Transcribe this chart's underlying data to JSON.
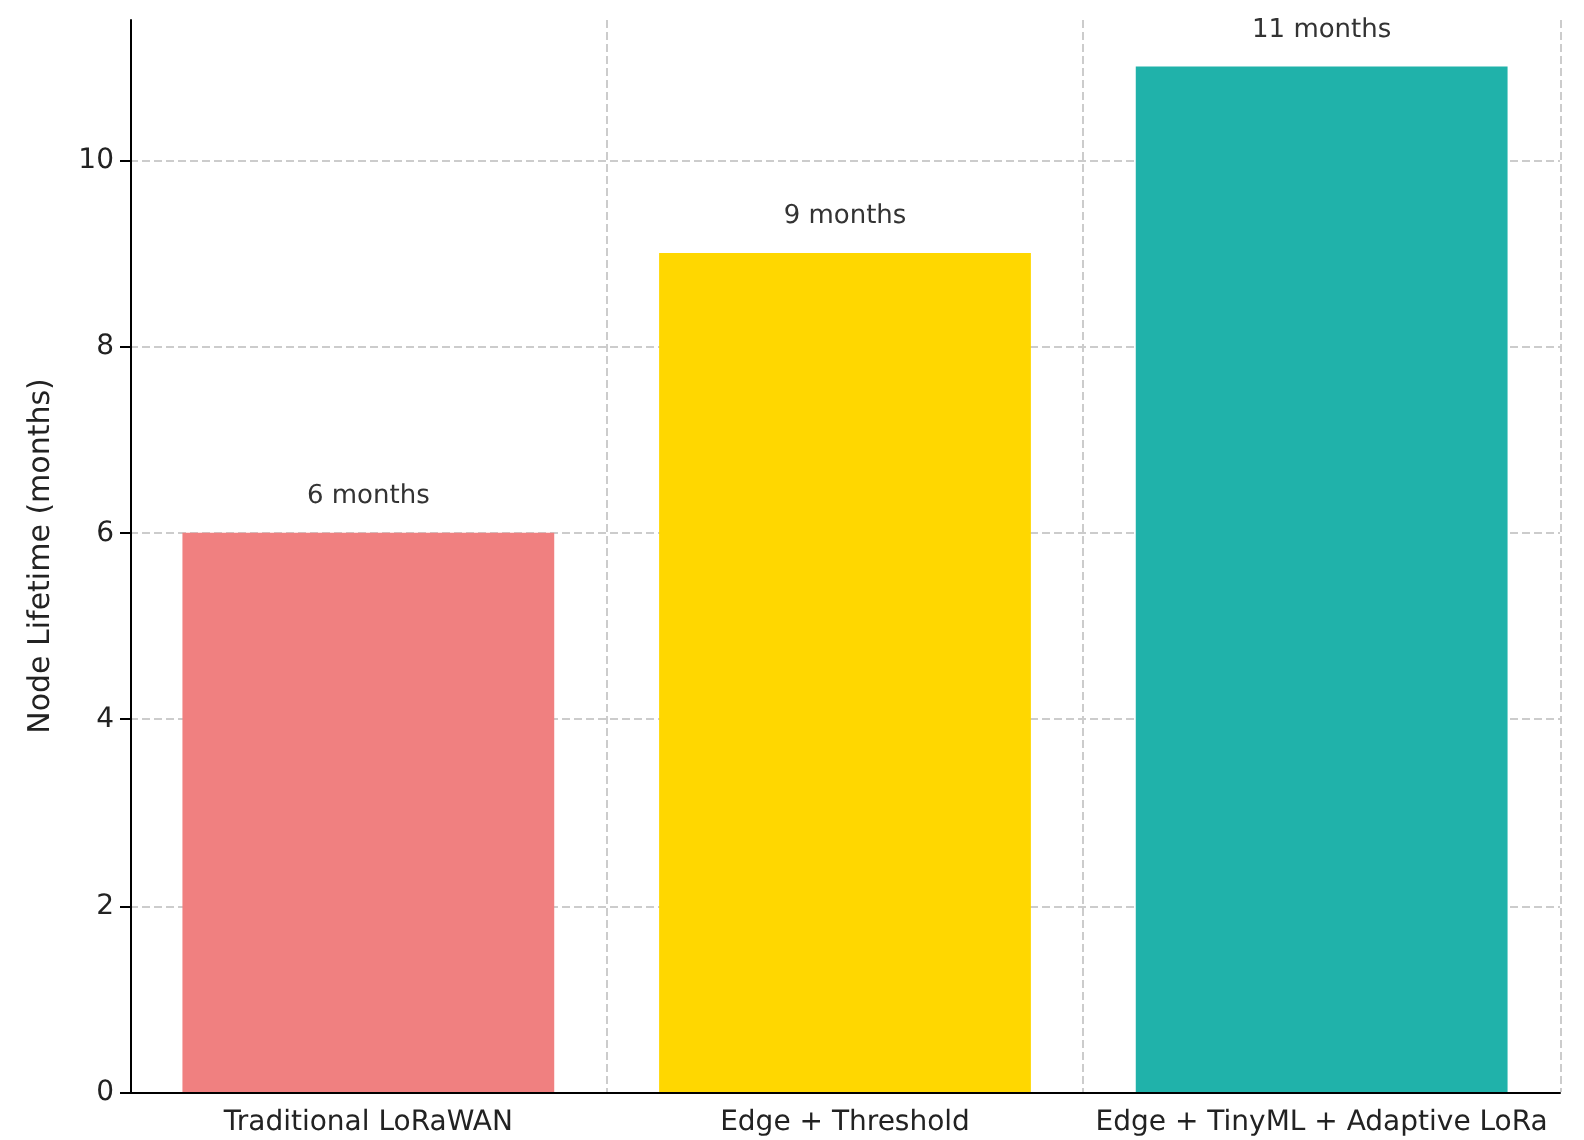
{
  "chart_data": {
    "type": "bar",
    "ylabel": "Node Lifetime (months)",
    "categories": [
      "Traditional LoRaWAN",
      "Edge + Threshold",
      "Edge + TinyML + Adaptive LoRa"
    ],
    "values": [
      6,
      9,
      11
    ],
    "colors": [
      "#f08080",
      "#ffd700",
      "#20b2aa"
    ],
    "value_labels": [
      "6 months",
      "9 months",
      "11 months"
    ],
    "ylim": [
      0,
      11.5
    ],
    "yticks": [
      0,
      2,
      4,
      6,
      8,
      10
    ],
    "grid": true
  }
}
